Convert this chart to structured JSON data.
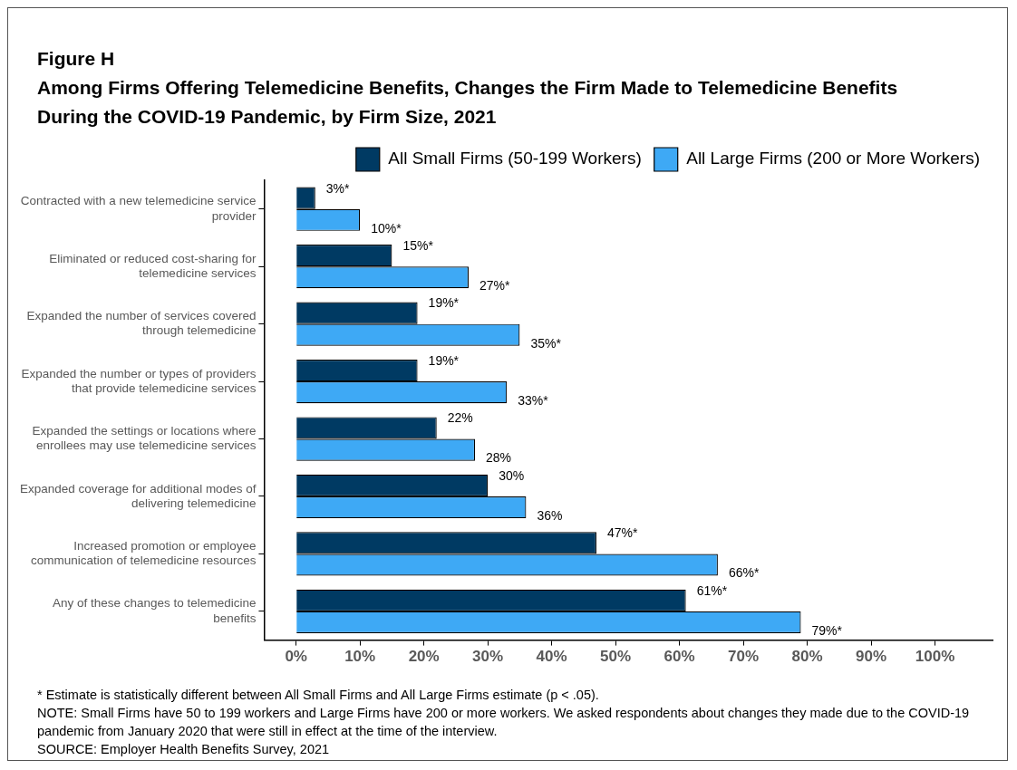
{
  "chart_data": {
    "type": "bar",
    "orientation": "horizontal",
    "title": "Figure H",
    "subtitle": "Among Firms Offering Telemedicine Benefits, Changes the Firm Made to Telemedicine Benefits During the COVID-19 Pandemic, by Firm Size, 2021",
    "categories": [
      "Contracted with a new telemedicine service provider",
      "Eliminated or reduced cost-sharing for telemedicine services",
      "Expanded the number of services covered through telemedicine",
      "Expanded the number or types of providers that provide telemedicine services",
      "Expanded the settings or locations where enrollees may use telemedicine services",
      "Expanded coverage for additional modes of delivering telemedicine",
      "Increased promotion or employee communication of telemedicine resources",
      "Any of these changes to telemedicine benefits"
    ],
    "series": [
      {
        "name": "All Small Firms (50-199 Workers)",
        "color": "#003a63",
        "values": [
          3,
          15,
          19,
          19,
          22,
          30,
          47,
          61
        ],
        "value_labels": [
          "3%*",
          "15%*",
          "19%*",
          "19%*",
          "22%",
          "30%",
          "47%*",
          "61%*"
        ]
      },
      {
        "name": "All Large Firms (200 or More Workers)",
        "color": "#3ea9f5",
        "values": [
          10,
          27,
          35,
          33,
          28,
          36,
          66,
          79
        ],
        "value_labels": [
          "10%*",
          "27%*",
          "35%*",
          "33%*",
          "28%",
          "36%",
          "66%*",
          "79%*"
        ]
      }
    ],
    "xlim": [
      -5,
      109
    ],
    "xticks": [
      {
        "value": 0,
        "label": "0%"
      },
      {
        "value": 10,
        "label": "10%"
      },
      {
        "value": 20,
        "label": "20%"
      },
      {
        "value": 30,
        "label": "30%"
      },
      {
        "value": 40,
        "label": "40%"
      },
      {
        "value": 50,
        "label": "50%"
      },
      {
        "value": 60,
        "label": "60%"
      },
      {
        "value": 70,
        "label": "70%"
      },
      {
        "value": 80,
        "label": "80%"
      },
      {
        "value": 90,
        "label": "90%"
      },
      {
        "value": 100,
        "label": "100%"
      }
    ],
    "grid": false,
    "legend": "top right",
    "annotations": [
      "* Estimate is statistically different between All Small Firms and All Large Firms estimate (p < .05).",
      "NOTE: Small Firms have 50 to 199 workers and Large Firms have 200 or more workers.  We asked respondents about changes they made due to the COVID-19 pandemic from January 2020 that were still in effect at the time of the interview.",
      "SOURCE: Employer Health Benefits Survey, 2021"
    ]
  }
}
